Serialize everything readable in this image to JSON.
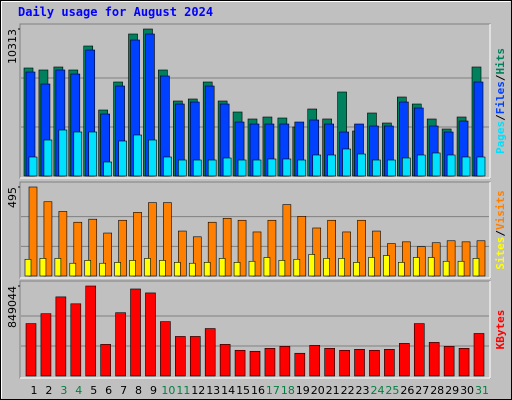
{
  "chart_data": {
    "type": "bar",
    "title": "Daily usage for August 2024",
    "categories": [
      "1",
      "2",
      "3",
      "4",
      "5",
      "6",
      "7",
      "8",
      "9",
      "10",
      "11",
      "12",
      "13",
      "14",
      "15",
      "16",
      "17",
      "18",
      "19",
      "20",
      "21",
      "22",
      "23",
      "24",
      "25",
      "26",
      "27",
      "28",
      "29",
      "30",
      "31"
    ],
    "category_colors": [
      "#000000",
      "#000000",
      "#008040",
      "#008040",
      "#000000",
      "#000000",
      "#000000",
      "#000000",
      "#000000",
      "#008040",
      "#008040",
      "#000000",
      "#000000",
      "#000000",
      "#000000",
      "#000000",
      "#008040",
      "#008040",
      "#000000",
      "#000000",
      "#000000",
      "#000000",
      "#000000",
      "#008040",
      "#008040",
      "#000000",
      "#000000",
      "#000000",
      "#000000",
      "#000000",
      "#008040"
    ],
    "legend_separator": "/",
    "panels": [
      {
        "ylim": [
          0,
          10313
        ],
        "yticks": [
          10313
        ],
        "series": [
          {
            "name": "Hits",
            "color": "#00805c",
            "values": [
              7577,
              7437,
              7647,
              7437,
              9120,
              4630,
              6595,
              9962,
              10313,
              7437,
              5262,
              5402,
              6595,
              5262,
              4490,
              3999,
              4139,
              4069,
              3438,
              4700,
              4000,
              5893,
              3157,
              4420,
              3718,
              5542,
              5051,
              3999,
              3297,
              4139,
              7647
            ]
          },
          {
            "name": "Files",
            "color": "#0040ff",
            "values": [
              7296,
              6454,
              7437,
              7156,
              8839,
              4350,
              6314,
              9541,
              9962,
              7016,
              5051,
              5191,
              6314,
              5051,
              3788,
              3648,
              3648,
              3648,
              3788,
              3929,
              3648,
              3087,
              3648,
              3508,
              3508,
              5191,
              4771,
              3508,
              3087,
              3858,
              6595
            ]
          },
          {
            "name": "Pages",
            "color": "#00e0ff",
            "values": [
              1333,
              2526,
              3227,
              3087,
              3087,
              982,
              2455,
              2876,
              2526,
              1333,
              1122,
              1122,
              1122,
              1263,
              1122,
              1122,
              1193,
              1193,
              1122,
              1473,
              1473,
              1894,
              1543,
              1122,
              1122,
              1263,
              1473,
              1614,
              1473,
              1333,
              1333
            ]
          }
        ]
      },
      {
        "ylim": [
          0,
          495
        ],
        "yticks": [
          495
        ],
        "series": [
          {
            "name": "Visits",
            "color": "#ff8000",
            "values": [
              495,
              413,
              359,
              299,
              316,
              239,
              310,
              354,
              408,
              408,
              250,
              218,
              299,
              321,
              310,
              245,
              310,
              397,
              332,
              267,
              310,
              245,
              310,
              250,
              180,
              190,
              163,
              185,
              196,
              190,
              196
            ]
          },
          {
            "name": "Sites",
            "color": "#ffff00",
            "values": [
              93,
              98,
              98,
              71,
              87,
              71,
              76,
              87,
              98,
              87,
              76,
              71,
              76,
              98,
              76,
              82,
              103,
              87,
              93,
              120,
              98,
              98,
              76,
              103,
              114,
              76,
              103,
              103,
              82,
              82,
              98
            ]
          }
        ]
      },
      {
        "ylim": [
          0,
          849044
        ],
        "yticks": [
          849044
        ],
        "series": [
          {
            "name": "KBytes",
            "color": "#ff0000",
            "values": [
              494500,
              587800,
              746400,
              681100,
              849044,
              298600,
              597100,
              821000,
              783700,
              513200,
              373200,
              373200,
              447800,
              298600,
              242600,
              233300,
              261200,
              279900,
              214600,
              289200,
              261200,
              242600,
              251900,
              242600,
              251900,
              307900,
              494500,
              317200,
              279900,
              261200,
              401200
            ]
          }
        ]
      }
    ]
  }
}
